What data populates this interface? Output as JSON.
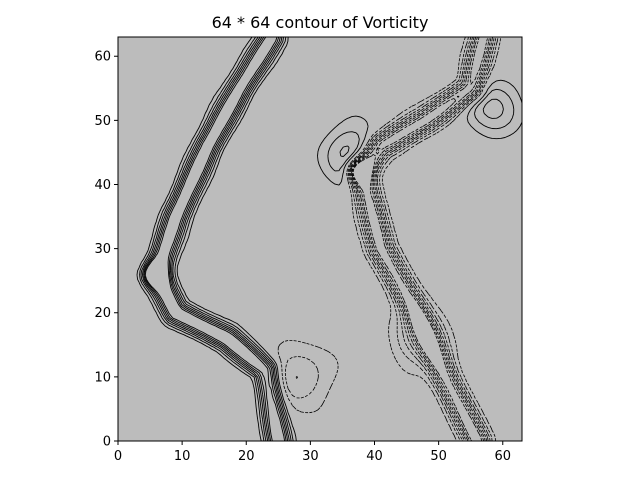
{
  "chart_data": {
    "type": "contour",
    "title": "64 * 64 contour of Vorticity",
    "grid_size": [
      64,
      64
    ],
    "xlim": [
      0,
      63
    ],
    "ylim": [
      0,
      63
    ],
    "xticks": [
      0,
      10,
      20,
      30,
      40,
      50,
      60
    ],
    "yticks": [
      0,
      10,
      20,
      30,
      40,
      50,
      60
    ],
    "xlabel": "",
    "ylabel": "",
    "background_color": "#bcbcbc",
    "line_color": "#000000",
    "line_styles": {
      "positive": "solid",
      "negative": "dashed"
    },
    "features": [
      {
        "name": "vortex-sheet-left",
        "sign": "positive",
        "path": [
          [
            6,
            26
          ],
          [
            9,
            35
          ],
          [
            14,
            46
          ],
          [
            19,
            55
          ],
          [
            24,
            63
          ]
        ]
      },
      {
        "name": "vortex-sheet-left-lower",
        "sign": "positive",
        "path": [
          [
            6,
            26
          ],
          [
            9,
            20
          ],
          [
            17,
            16
          ],
          [
            23,
            11
          ],
          [
            25,
            0
          ]
        ]
      },
      {
        "name": "vortex-sheet-right",
        "sign": "negative",
        "path": [
          [
            38,
            42
          ],
          [
            41,
            30
          ],
          [
            46,
            21
          ],
          [
            51,
            10
          ],
          [
            56,
            0
          ]
        ]
      },
      {
        "name": "vortex-sheet-right-upper",
        "sign": "negative",
        "path": [
          [
            38,
            42
          ],
          [
            41,
            46
          ],
          [
            48,
            50
          ],
          [
            55,
            55
          ],
          [
            57,
            63
          ]
        ]
      },
      {
        "name": "eddy-upper-right",
        "sign": "positive",
        "center": [
          58,
          52
        ]
      },
      {
        "name": "eddy-middle",
        "sign": "positive",
        "center": [
          36,
          45
        ]
      },
      {
        "name": "eddy-lower-middle",
        "sign": "negative",
        "center": [
          28,
          10
        ]
      },
      {
        "name": "eddy-lower-right",
        "sign": "negative",
        "center": [
          47,
          16
        ]
      }
    ]
  }
}
